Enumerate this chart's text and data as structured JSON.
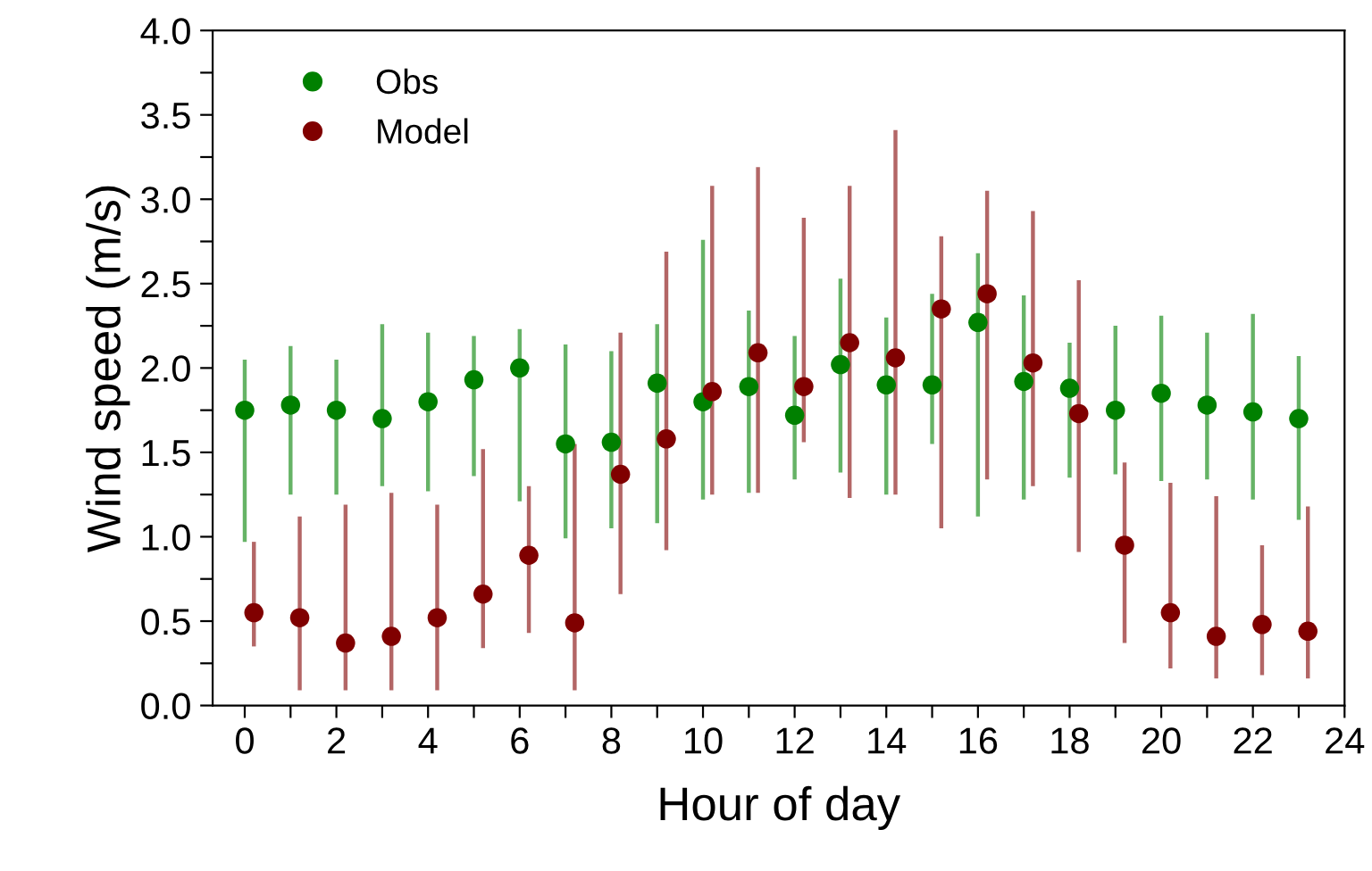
{
  "chart_data": {
    "type": "scatter",
    "xlabel": "Hour of day",
    "ylabel": "Wind speed (m/s)",
    "xlim": [
      -0.7,
      24
    ],
    "ylim": [
      0,
      4.0
    ],
    "xticks": [
      0,
      {
        "value": 1,
        "label": null
      },
      2,
      {
        "value": 3,
        "label": null
      },
      4,
      {
        "value": 5,
        "label": null
      },
      6,
      {
        "value": 7,
        "label": null
      },
      8,
      {
        "value": 9,
        "label": null
      },
      10,
      {
        "value": 11,
        "label": null
      },
      12,
      {
        "value": 13,
        "label": null
      },
      14,
      {
        "value": 15,
        "label": null
      },
      16,
      {
        "value": 17,
        "label": null
      },
      18,
      {
        "value": 19,
        "label": null
      },
      20,
      {
        "value": 21,
        "label": null
      },
      22,
      {
        "value": 23,
        "label": null
      },
      24
    ],
    "yticks": [
      {
        "value": 0,
        "label": "0.0"
      },
      {
        "value": 0.25,
        "label": null
      },
      {
        "value": 0.5,
        "label": "0.5"
      },
      {
        "value": 0.75,
        "label": null
      },
      {
        "value": 1.0,
        "label": "1.0"
      },
      {
        "value": 1.25,
        "label": null
      },
      {
        "value": 1.5,
        "label": "1.5"
      },
      {
        "value": 1.75,
        "label": null
      },
      {
        "value": 2.0,
        "label": "2.0"
      },
      {
        "value": 2.25,
        "label": null
      },
      {
        "value": 2.5,
        "label": "2.5"
      },
      {
        "value": 2.75,
        "label": null
      },
      {
        "value": 3.0,
        "label": "3.0"
      },
      {
        "value": 3.25,
        "label": null
      },
      {
        "value": 3.5,
        "label": "3.5"
      },
      {
        "value": 3.75,
        "label": null
      },
      {
        "value": 4.0,
        "label": "4.0"
      }
    ],
    "grid": false,
    "legend": "top left",
    "marker": "circle",
    "series": [
      {
        "name": "Obs",
        "color": "#008000",
        "x": [
          0,
          1,
          2,
          3,
          4,
          5,
          6,
          7,
          8,
          9,
          10,
          11,
          12,
          13,
          14,
          15,
          16,
          17,
          18,
          19,
          20,
          21,
          22,
          23
        ],
        "values": [
          1.75,
          1.78,
          1.75,
          1.7,
          1.8,
          1.93,
          2.0,
          1.55,
          1.56,
          1.91,
          1.8,
          1.89,
          1.72,
          2.02,
          1.9,
          1.9,
          2.27,
          1.92,
          1.88,
          1.75,
          1.85,
          1.78,
          1.74,
          1.7
        ],
        "errors": [
          [
            0.97,
            2.05
          ],
          [
            1.25,
            2.13
          ],
          [
            1.25,
            2.05
          ],
          [
            1.3,
            2.26
          ],
          [
            1.27,
            2.21
          ],
          [
            1.36,
            2.19
          ],
          [
            1.21,
            2.23
          ],
          [
            0.99,
            2.14
          ],
          [
            1.05,
            2.1
          ],
          [
            1.08,
            2.26
          ],
          [
            1.22,
            2.76
          ],
          [
            1.26,
            2.34
          ],
          [
            1.34,
            2.19
          ],
          [
            1.38,
            2.53
          ],
          [
            1.25,
            2.3
          ],
          [
            1.55,
            2.44
          ],
          [
            1.12,
            2.68
          ],
          [
            1.22,
            2.43
          ],
          [
            1.35,
            2.15
          ],
          [
            1.37,
            2.25
          ],
          [
            1.33,
            2.31
          ],
          [
            1.34,
            2.21
          ],
          [
            1.22,
            2.32
          ],
          [
            1.1,
            2.07
          ]
        ]
      },
      {
        "name": "Model",
        "color": "#800000",
        "x": [
          0.2,
          1.2,
          2.2,
          3.2,
          4.2,
          5.2,
          6.2,
          7.2,
          8.2,
          9.2,
          10.2,
          11.2,
          12.2,
          13.2,
          14.2,
          15.2,
          16.2,
          17.2,
          18.2,
          19.2,
          20.2,
          21.2,
          22.2,
          23.2
        ],
        "values": [
          0.55,
          0.52,
          0.37,
          0.41,
          0.52,
          0.66,
          0.89,
          0.49,
          1.37,
          1.58,
          1.86,
          2.09,
          1.89,
          2.15,
          2.06,
          2.35,
          2.44,
          2.03,
          1.73,
          0.95,
          0.55,
          0.41,
          0.48,
          0.44
        ],
        "errors": [
          [
            0.35,
            0.97
          ],
          [
            0.09,
            1.12
          ],
          [
            0.09,
            1.19
          ],
          [
            0.09,
            1.26
          ],
          [
            0.09,
            1.19
          ],
          [
            0.34,
            1.52
          ],
          [
            0.43,
            1.3
          ],
          [
            0.09,
            1.55
          ],
          [
            0.66,
            2.21
          ],
          [
            0.92,
            2.69
          ],
          [
            1.25,
            3.08
          ],
          [
            1.26,
            3.19
          ],
          [
            1.56,
            2.89
          ],
          [
            1.23,
            3.08
          ],
          [
            1.25,
            3.41
          ],
          [
            1.05,
            2.78
          ],
          [
            1.34,
            3.05
          ],
          [
            1.3,
            2.93
          ],
          [
            0.91,
            2.52
          ],
          [
            0.37,
            1.44
          ],
          [
            0.22,
            1.32
          ],
          [
            0.16,
            1.24
          ],
          [
            0.18,
            0.95
          ],
          [
            0.16,
            1.18
          ]
        ]
      }
    ]
  }
}
